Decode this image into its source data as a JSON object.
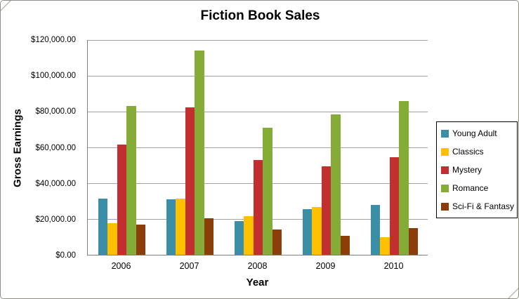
{
  "chart_data": {
    "type": "bar",
    "title": "Fiction Book Sales",
    "xlabel": "Year",
    "ylabel": "Gross Earnings",
    "ylim": [
      0,
      120000
    ],
    "grid": true,
    "legend_position": "right",
    "gridline_color": "#a3a3a3",
    "axis_color": "#7f7f7f",
    "y_ticks": [
      {
        "value": 0,
        "label": "$0.00"
      },
      {
        "value": 20000,
        "label": "$20,000.00"
      },
      {
        "value": 40000,
        "label": "$40,000.00"
      },
      {
        "value": 60000,
        "label": "$60,000.00"
      },
      {
        "value": 80000,
        "label": "$80,000.00"
      },
      {
        "value": 100000,
        "label": "$100,000.00"
      },
      {
        "value": 120000,
        "label": "$120,000.00"
      }
    ],
    "categories": [
      "2006",
      "2007",
      "2008",
      "2009",
      "2010"
    ],
    "series": [
      {
        "name": "Young Adult",
        "color": "#3a8fa6",
        "values": [
          31500,
          31000,
          19000,
          25500,
          28000
        ]
      },
      {
        "name": "Classics",
        "color": "#ffc000",
        "values": [
          17500,
          31500,
          21500,
          26500,
          10000
        ]
      },
      {
        "name": "Mystery",
        "color": "#c22f2f",
        "values": [
          61500,
          82500,
          53000,
          49500,
          54500
        ]
      },
      {
        "name": "Romance",
        "color": "#84ac36",
        "values": [
          83000,
          114000,
          71000,
          78500,
          86000
        ]
      },
      {
        "name": "Sci-Fi & Fantasy",
        "color": "#8c3e08",
        "values": [
          17000,
          20500,
          14000,
          10500,
          15000
        ]
      }
    ]
  }
}
